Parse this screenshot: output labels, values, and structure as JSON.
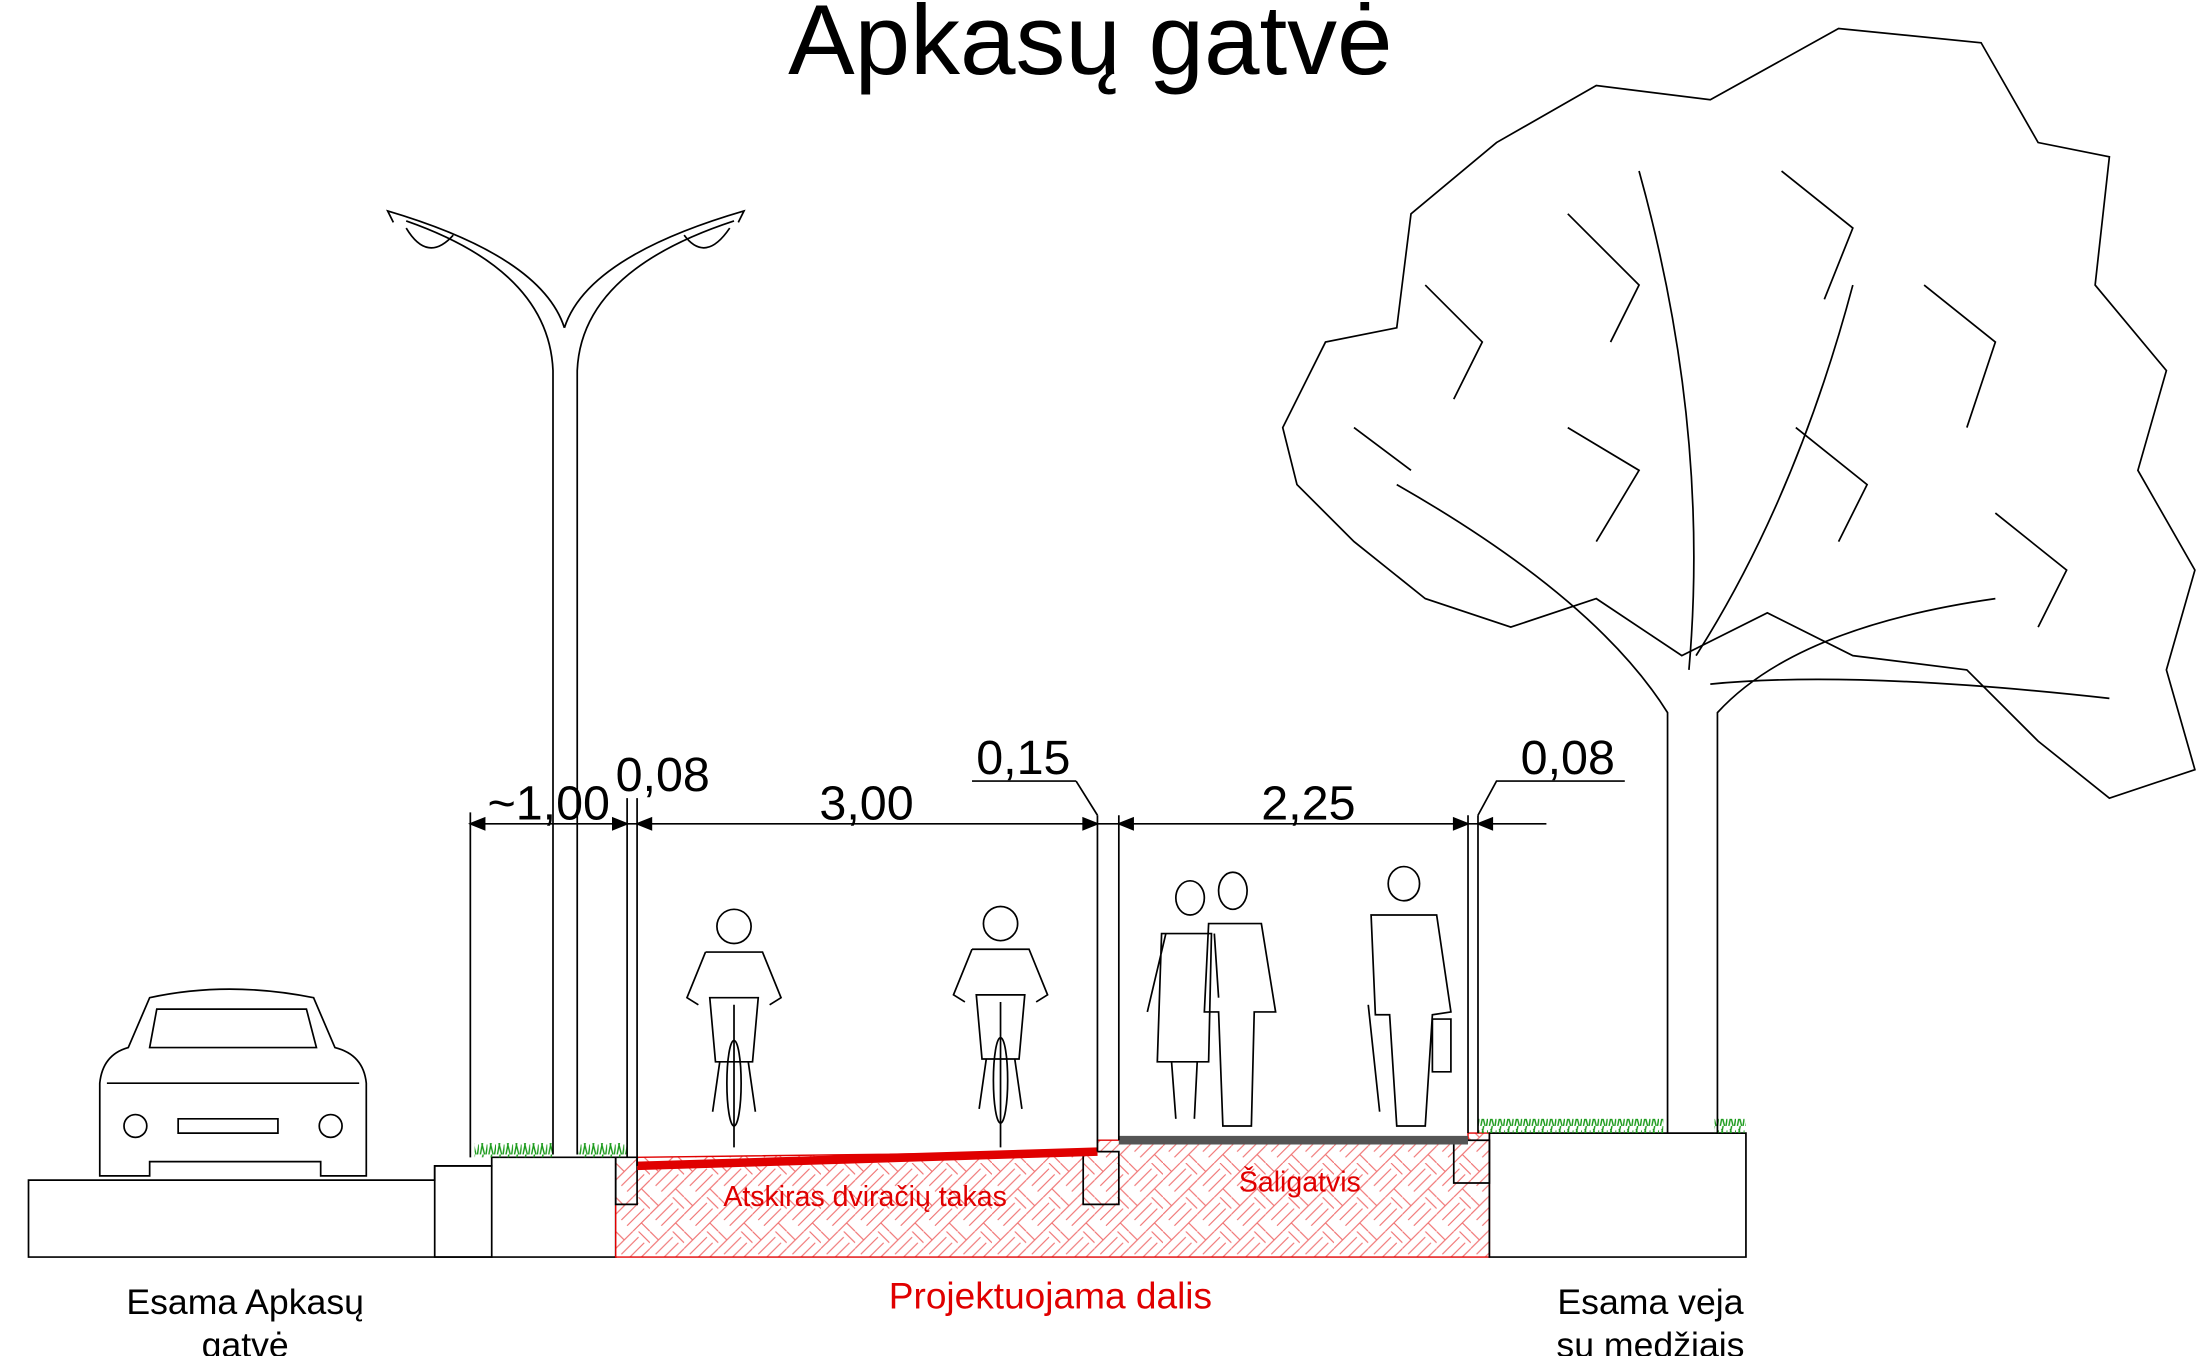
{
  "title": "Apkasų gatvė",
  "dimensions": [
    "~1,00",
    "0,08",
    "3,00",
    "0,15",
    "2,25",
    "0,08"
  ],
  "labels": {
    "existing_street": [
      "Esama Apkasų",
      "gatvė"
    ],
    "bike_path": "Atskiras dviračių takas",
    "sidewalk": "Šaligatvis",
    "designed_part": "Projektuojama dalis",
    "existing_lawn": [
      "Esama veja",
      "su medžiais"
    ]
  }
}
